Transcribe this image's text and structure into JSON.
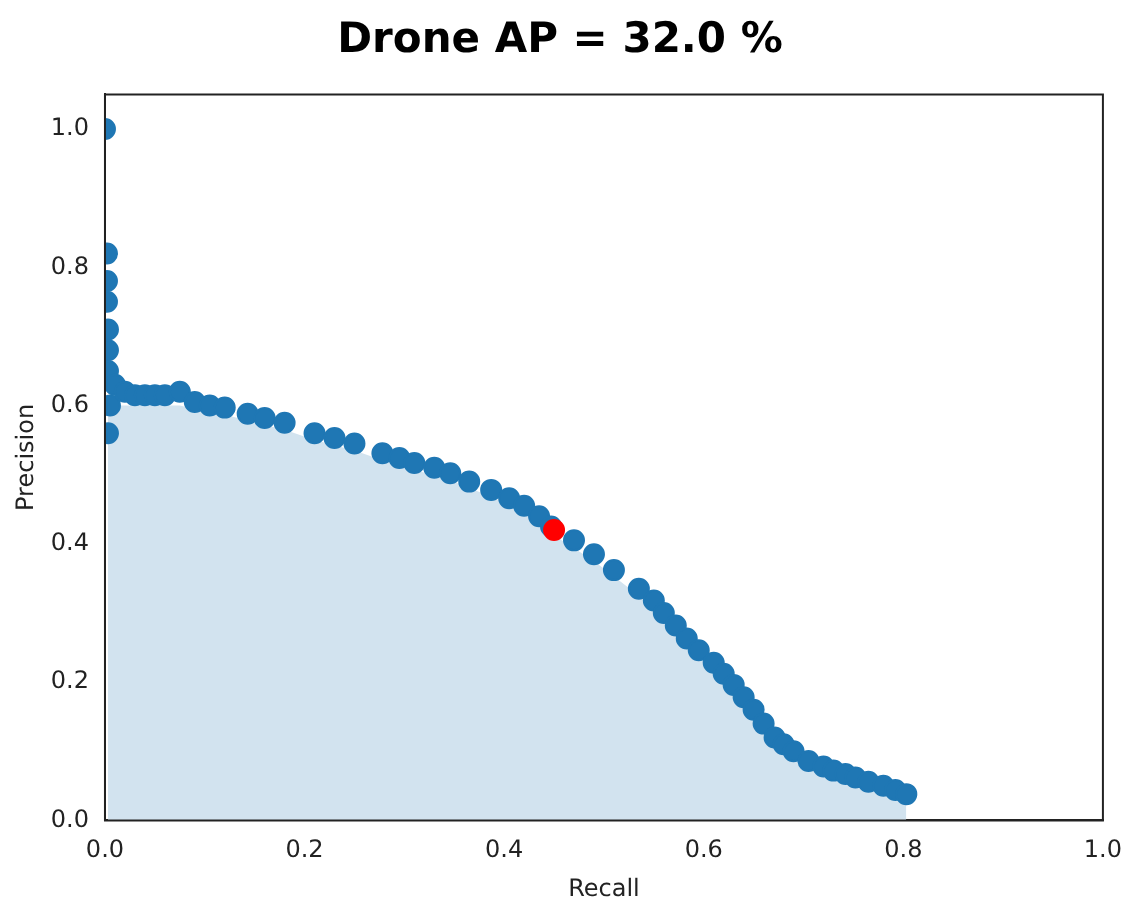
{
  "chart_data": {
    "type": "scatter",
    "title": "Drone AP = 32.0 %",
    "xlabel": "Recall",
    "ylabel": "Precision",
    "xlim": [
      0,
      1
    ],
    "ylim": [
      0,
      1.05
    ],
    "xticks": [
      {
        "value": 0,
        "label": "0.0"
      },
      {
        "value": 0.2,
        "label": "0.2"
      },
      {
        "value": 0.4,
        "label": "0.4"
      },
      {
        "value": 0.6,
        "label": "0.6"
      },
      {
        "value": 0.8,
        "label": "0.8"
      },
      {
        "value": 1,
        "label": "1.0"
      }
    ],
    "yticks": [
      {
        "value": 0,
        "label": "0.0"
      },
      {
        "value": 0.2,
        "label": "0.2"
      },
      {
        "value": 0.4,
        "label": "0.4"
      },
      {
        "value": 0.6,
        "label": "0.6"
      },
      {
        "value": 0.8,
        "label": "0.8"
      },
      {
        "value": 1,
        "label": "1.0"
      }
    ],
    "legend": false,
    "series": [
      {
        "type": "area",
        "color": "#d2e3ef",
        "x": [
          0.003,
          0.005,
          0.01,
          0.02,
          0.04,
          0.06,
          0.075,
          0.09,
          0.12,
          0.143,
          0.18,
          0.21,
          0.25,
          0.278,
          0.31,
          0.346,
          0.387,
          0.42,
          0.447,
          0.49,
          0.535,
          0.56,
          0.583,
          0.61,
          0.63,
          0.65,
          0.671,
          0.69,
          0.705,
          0.73,
          0.752,
          0.78,
          0.803
        ],
        "values": [
          0.6,
          0.6,
          0.6,
          0.6,
          0.6,
          0.6,
          0.6,
          0.595,
          0.587,
          0.578,
          0.565,
          0.55,
          0.535,
          0.521,
          0.507,
          0.492,
          0.468,
          0.445,
          0.415,
          0.375,
          0.325,
          0.29,
          0.253,
          0.218,
          0.186,
          0.15,
          0.11,
          0.09,
          0.076,
          0.062,
          0.052,
          0.04,
          0.028
        ]
      },
      {
        "marker": "circle",
        "color": "#1f77b4",
        "x": [
          0,
          0.002,
          0.002,
          0.002,
          0.003,
          0.003,
          0.003,
          0.003,
          0.005,
          0.01,
          0.02,
          0.03,
          0.04,
          0.05,
          0.06,
          0.075,
          0.09,
          0.105,
          0.12,
          0.143,
          0.16,
          0.18,
          0.21,
          0.23,
          0.25,
          0.278,
          0.295,
          0.31,
          0.33,
          0.346,
          0.365,
          0.387,
          0.405,
          0.42,
          0.435,
          0.447,
          0.47,
          0.49,
          0.51,
          0.535,
          0.55,
          0.56,
          0.572,
          0.583,
          0.595,
          0.61,
          0.62,
          0.63,
          0.64,
          0.65,
          0.66,
          0.671,
          0.68,
          0.69,
          0.705,
          0.72,
          0.73,
          0.742,
          0.752,
          0.765,
          0.78,
          0.792,
          0.803
        ],
        "values": [
          1.0,
          0.82,
          0.78,
          0.75,
          0.71,
          0.68,
          0.65,
          0.56,
          0.6,
          0.63,
          0.62,
          0.615,
          0.615,
          0.615,
          0.615,
          0.62,
          0.605,
          0.6,
          0.597,
          0.588,
          0.582,
          0.575,
          0.56,
          0.553,
          0.545,
          0.531,
          0.524,
          0.517,
          0.51,
          0.502,
          0.49,
          0.478,
          0.466,
          0.455,
          0.44,
          0.425,
          0.405,
          0.385,
          0.362,
          0.335,
          0.318,
          0.3,
          0.282,
          0.263,
          0.246,
          0.228,
          0.212,
          0.196,
          0.178,
          0.16,
          0.14,
          0.12,
          0.11,
          0.1,
          0.086,
          0.078,
          0.072,
          0.067,
          0.062,
          0.056,
          0.05,
          0.044,
          0.038
        ]
      },
      {
        "marker": "circle",
        "color": "#ff0000",
        "x": [
          0.45
        ],
        "values": [
          0.42
        ]
      }
    ]
  }
}
